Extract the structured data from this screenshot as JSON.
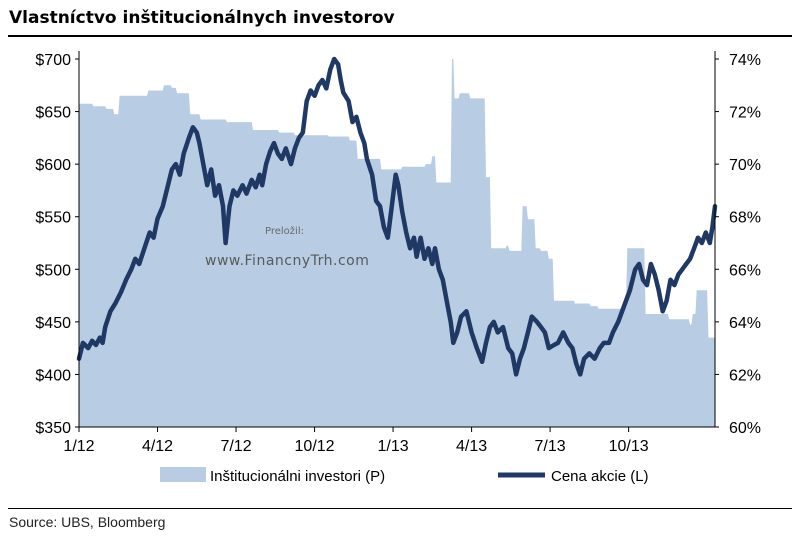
{
  "title": "Vlastníctvo inštitucionálnych investorov",
  "source": "Source:  UBS, Bloomberg",
  "watermark": {
    "small": "Preložil:",
    "big": "www.FinancnyTrh.com"
  },
  "colors": {
    "price_line": "#1f3864",
    "institutional_area": "#b8cce4"
  },
  "chart_data": {
    "type": "area",
    "x_ticks": [
      "1/12",
      "4/12",
      "7/12",
      "10/12",
      "1/13",
      "4/13",
      "7/13",
      "10/13"
    ],
    "y_left": {
      "ticks": [
        "$350",
        "$400",
        "$450",
        "$500",
        "$550",
        "$600",
        "$650",
        "$700"
      ],
      "range": [
        350,
        700
      ]
    },
    "y_right": {
      "ticks": [
        "60%",
        "62%",
        "64%",
        "66%",
        "68%",
        "70%",
        "72%",
        "74%"
      ],
      "range": [
        60,
        74
      ]
    },
    "x_range_months": [
      0,
      24.3
    ],
    "series": [
      {
        "name": "Inštitucionálni investori (P)",
        "type": "area",
        "axis": "right",
        "points": [
          [
            0.0,
            72.3
          ],
          [
            0.5,
            72.3
          ],
          [
            0.55,
            72.2
          ],
          [
            1.0,
            72.2
          ],
          [
            1.05,
            72.1
          ],
          [
            1.3,
            72.1
          ],
          [
            1.35,
            71.9
          ],
          [
            1.5,
            71.9
          ],
          [
            1.55,
            72.6
          ],
          [
            2.6,
            72.6
          ],
          [
            2.65,
            72.8
          ],
          [
            3.2,
            72.8
          ],
          [
            3.25,
            73.0
          ],
          [
            3.5,
            73.0
          ],
          [
            3.55,
            72.9
          ],
          [
            3.7,
            72.9
          ],
          [
            3.75,
            72.7
          ],
          [
            4.2,
            72.7
          ],
          [
            4.25,
            71.9
          ],
          [
            4.6,
            71.9
          ],
          [
            4.65,
            71.7
          ],
          [
            5.6,
            71.7
          ],
          [
            5.65,
            71.6
          ],
          [
            6.6,
            71.6
          ],
          [
            6.65,
            71.3
          ],
          [
            7.6,
            71.3
          ],
          [
            7.65,
            71.2
          ],
          [
            8.2,
            71.2
          ],
          [
            8.25,
            71.1
          ],
          [
            9.5,
            71.1
          ],
          [
            9.55,
            71.05
          ],
          [
            10.3,
            71.05
          ],
          [
            10.35,
            70.9
          ],
          [
            10.6,
            70.9
          ],
          [
            10.65,
            70.2
          ],
          [
            11.5,
            70.2
          ],
          [
            11.55,
            69.8
          ],
          [
            12.3,
            69.8
          ],
          [
            12.35,
            69.9
          ],
          [
            13.2,
            69.9
          ],
          [
            13.25,
            70.0
          ],
          [
            13.45,
            70.0
          ],
          [
            13.5,
            70.3
          ],
          [
            13.6,
            70.3
          ],
          [
            13.65,
            69.3
          ],
          [
            14.2,
            69.3
          ],
          [
            14.25,
            74.0
          ],
          [
            14.3,
            74.0
          ],
          [
            14.35,
            72.5
          ],
          [
            14.5,
            72.5
          ],
          [
            14.55,
            72.7
          ],
          [
            14.9,
            72.7
          ],
          [
            14.95,
            72.5
          ],
          [
            15.5,
            72.5
          ],
          [
            15.55,
            69.5
          ],
          [
            15.7,
            69.5
          ],
          [
            15.75,
            66.8
          ],
          [
            16.3,
            66.8
          ],
          [
            16.35,
            66.9
          ],
          [
            16.4,
            66.9
          ],
          [
            16.45,
            66.7
          ],
          [
            16.9,
            66.7
          ],
          [
            16.95,
            68.4
          ],
          [
            17.1,
            68.4
          ],
          [
            17.15,
            67.9
          ],
          [
            17.4,
            67.9
          ],
          [
            17.45,
            66.8
          ],
          [
            17.6,
            66.8
          ],
          [
            17.65,
            66.7
          ],
          [
            17.9,
            66.7
          ],
          [
            17.95,
            66.4
          ],
          [
            18.1,
            66.4
          ],
          [
            18.15,
            64.8
          ],
          [
            18.9,
            64.8
          ],
          [
            18.95,
            64.7
          ],
          [
            19.5,
            64.7
          ],
          [
            19.55,
            64.6
          ],
          [
            19.8,
            64.6
          ],
          [
            19.85,
            64.5
          ],
          [
            20.8,
            64.5
          ],
          [
            20.85,
            64.6
          ],
          [
            20.9,
            64.6
          ],
          [
            20.95,
            66.8
          ],
          [
            21.6,
            66.8
          ],
          [
            21.65,
            64.3
          ],
          [
            22.5,
            64.3
          ],
          [
            22.55,
            64.1
          ],
          [
            23.3,
            64.1
          ],
          [
            23.35,
            63.9
          ],
          [
            23.4,
            63.9
          ],
          [
            23.45,
            64.3
          ],
          [
            23.55,
            64.3
          ],
          [
            23.6,
            65.2
          ],
          [
            24.0,
            65.2
          ],
          [
            24.05,
            63.4
          ],
          [
            24.3,
            63.4
          ]
        ]
      },
      {
        "name": "Cena akcie (L)",
        "type": "line",
        "axis": "left",
        "points": [
          [
            0.0,
            415
          ],
          [
            0.15,
            430
          ],
          [
            0.35,
            425
          ],
          [
            0.5,
            432
          ],
          [
            0.65,
            428
          ],
          [
            0.8,
            435
          ],
          [
            0.9,
            430
          ],
          [
            1.0,
            445
          ],
          [
            1.2,
            460
          ],
          [
            1.4,
            468
          ],
          [
            1.6,
            478
          ],
          [
            1.8,
            490
          ],
          [
            2.0,
            500
          ],
          [
            2.15,
            510
          ],
          [
            2.3,
            505
          ],
          [
            2.5,
            520
          ],
          [
            2.7,
            535
          ],
          [
            2.85,
            530
          ],
          [
            3.0,
            548
          ],
          [
            3.2,
            560
          ],
          [
            3.4,
            580
          ],
          [
            3.55,
            595
          ],
          [
            3.7,
            600
          ],
          [
            3.85,
            590
          ],
          [
            4.0,
            610
          ],
          [
            4.2,
            625
          ],
          [
            4.35,
            635
          ],
          [
            4.5,
            630
          ],
          [
            4.6,
            620
          ],
          [
            4.75,
            600
          ],
          [
            4.9,
            580
          ],
          [
            5.05,
            595
          ],
          [
            5.2,
            570
          ],
          [
            5.35,
            580
          ],
          [
            5.5,
            560
          ],
          [
            5.6,
            525
          ],
          [
            5.75,
            560
          ],
          [
            5.9,
            575
          ],
          [
            6.05,
            570
          ],
          [
            6.25,
            580
          ],
          [
            6.4,
            572
          ],
          [
            6.6,
            585
          ],
          [
            6.75,
            578
          ],
          [
            6.9,
            590
          ],
          [
            7.0,
            580
          ],
          [
            7.15,
            600
          ],
          [
            7.3,
            612
          ],
          [
            7.45,
            620
          ],
          [
            7.6,
            610
          ],
          [
            7.75,
            605
          ],
          [
            7.9,
            615
          ],
          [
            8.1,
            600
          ],
          [
            8.25,
            615
          ],
          [
            8.4,
            625
          ],
          [
            8.55,
            630
          ],
          [
            8.7,
            660
          ],
          [
            8.85,
            670
          ],
          [
            9.0,
            665
          ],
          [
            9.15,
            675
          ],
          [
            9.3,
            680
          ],
          [
            9.45,
            672
          ],
          [
            9.6,
            690
          ],
          [
            9.75,
            700
          ],
          [
            9.9,
            695
          ],
          [
            10.0,
            680
          ],
          [
            10.1,
            668
          ],
          [
            10.3,
            660
          ],
          [
            10.45,
            640
          ],
          [
            10.6,
            645
          ],
          [
            10.75,
            630
          ],
          [
            10.9,
            620
          ],
          [
            11.0,
            605
          ],
          [
            11.2,
            590
          ],
          [
            11.35,
            565
          ],
          [
            11.5,
            560
          ],
          [
            11.65,
            540
          ],
          [
            11.8,
            530
          ],
          [
            11.95,
            560
          ],
          [
            12.1,
            590
          ],
          [
            12.2,
            580
          ],
          [
            12.35,
            555
          ],
          [
            12.5,
            535
          ],
          [
            12.65,
            520
          ],
          [
            12.8,
            530
          ],
          [
            12.9,
            512
          ],
          [
            13.05,
            530
          ],
          [
            13.2,
            510
          ],
          [
            13.35,
            520
          ],
          [
            13.5,
            505
          ],
          [
            13.6,
            520
          ],
          [
            13.75,
            500
          ],
          [
            13.9,
            490
          ],
          [
            14.05,
            470
          ],
          [
            14.2,
            450
          ],
          [
            14.3,
            430
          ],
          [
            14.45,
            440
          ],
          [
            14.6,
            455
          ],
          [
            14.8,
            460
          ],
          [
            15.0,
            440
          ],
          [
            15.2,
            425
          ],
          [
            15.4,
            412
          ],
          [
            15.55,
            430
          ],
          [
            15.7,
            445
          ],
          [
            15.85,
            450
          ],
          [
            16.0,
            440
          ],
          [
            16.2,
            445
          ],
          [
            16.4,
            425
          ],
          [
            16.55,
            420
          ],
          [
            16.7,
            400
          ],
          [
            16.85,
            415
          ],
          [
            17.0,
            425
          ],
          [
            17.15,
            440
          ],
          [
            17.3,
            455
          ],
          [
            17.5,
            450
          ],
          [
            17.65,
            445
          ],
          [
            17.8,
            440
          ],
          [
            17.95,
            425
          ],
          [
            18.15,
            428
          ],
          [
            18.3,
            430
          ],
          [
            18.5,
            440
          ],
          [
            18.7,
            430
          ],
          [
            18.85,
            425
          ],
          [
            19.0,
            410
          ],
          [
            19.15,
            400
          ],
          [
            19.3,
            415
          ],
          [
            19.5,
            420
          ],
          [
            19.7,
            415
          ],
          [
            19.9,
            425
          ],
          [
            20.05,
            430
          ],
          [
            20.25,
            430
          ],
          [
            20.4,
            440
          ],
          [
            20.6,
            450
          ],
          [
            20.75,
            460
          ],
          [
            20.9,
            470
          ],
          [
            21.05,
            480
          ],
          [
            21.25,
            500
          ],
          [
            21.4,
            505
          ],
          [
            21.55,
            490
          ],
          [
            21.7,
            485
          ],
          [
            21.85,
            505
          ],
          [
            22.0,
            495
          ],
          [
            22.15,
            480
          ],
          [
            22.3,
            460
          ],
          [
            22.45,
            470
          ],
          [
            22.6,
            490
          ],
          [
            22.75,
            485
          ],
          [
            22.9,
            495
          ],
          [
            23.05,
            500
          ],
          [
            23.2,
            505
          ],
          [
            23.35,
            510
          ],
          [
            23.5,
            520
          ],
          [
            23.65,
            530
          ],
          [
            23.8,
            525
          ],
          [
            23.95,
            535
          ],
          [
            24.1,
            525
          ],
          [
            24.2,
            540
          ],
          [
            24.3,
            560
          ]
        ]
      }
    ],
    "legend_position": "bottom",
    "grid": false
  }
}
